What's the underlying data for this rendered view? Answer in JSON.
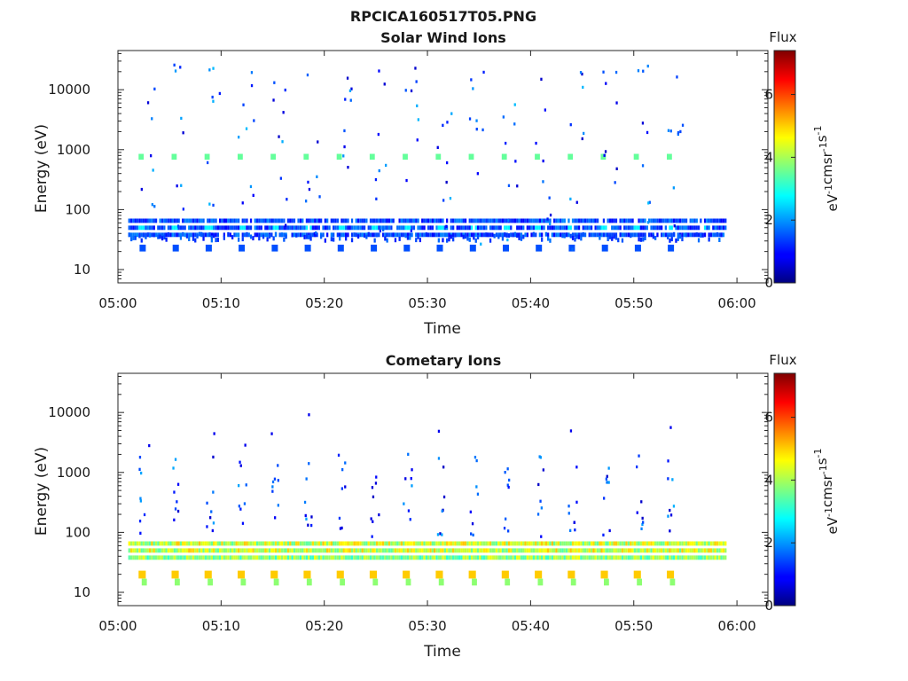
{
  "figure": {
    "suptitle": "RPCICA160517T05.PNG"
  },
  "chart_data": [
    {
      "type": "heatmap",
      "title": "Solar Wind Ions",
      "xlabel": "Time",
      "ylabel": "Energy (eV)",
      "xlim": [
        "05:00",
        "06:03"
      ],
      "ylim": [
        6,
        45000
      ],
      "y_scale": "log",
      "x_tick_labels": [
        "05:00",
        "05:10",
        "05:20",
        "05:30",
        "05:40",
        "05:50",
        "06:00"
      ],
      "y_tick_values": [
        10,
        100,
        1000,
        10000
      ],
      "y_tick_labels": [
        "10",
        "100",
        "1000",
        "10000"
      ],
      "colorbar": {
        "title": "Flux",
        "label": "eV-1cm-2sr-1s-1",
        "range": [
          0,
          7.4
        ],
        "ticks": [
          "0",
          "2",
          "4",
          "6"
        ],
        "colormap": "jet"
      },
      "data_span": [
        "05:01",
        "05:59"
      ],
      "dense_band_ev": [
        35,
        60
      ],
      "background_flux_level": 1.5,
      "sweep_period_min": 3.2,
      "sweep_peak_ev": 800,
      "sweep_peak_flux": 3.5
    },
    {
      "type": "heatmap",
      "title": "Cometary Ions",
      "xlabel": "Time",
      "ylabel": "Energy (eV)",
      "xlim": [
        "05:00",
        "06:03"
      ],
      "ylim": [
        6,
        45000
      ],
      "y_scale": "log",
      "x_tick_labels": [
        "05:00",
        "05:10",
        "05:20",
        "05:30",
        "05:40",
        "05:50",
        "06:00"
      ],
      "y_tick_values": [
        10,
        100,
        1000,
        10000
      ],
      "y_tick_labels": [
        "10",
        "100",
        "1000",
        "10000"
      ],
      "colorbar": {
        "title": "Flux",
        "label": "eV-1cm-2sr-1s-1",
        "range": [
          0,
          7.4
        ],
        "ticks": [
          "0",
          "2",
          "4",
          "6"
        ],
        "colormap": "jet"
      },
      "data_span": [
        "05:01",
        "05:59"
      ],
      "dense_band_ev": [
        35,
        60
      ],
      "band_flux_level": 4.3,
      "sweep_period_min": 3.2,
      "low_energy_peak_ev": 20,
      "low_energy_peak_flux": 5.0
    }
  ]
}
